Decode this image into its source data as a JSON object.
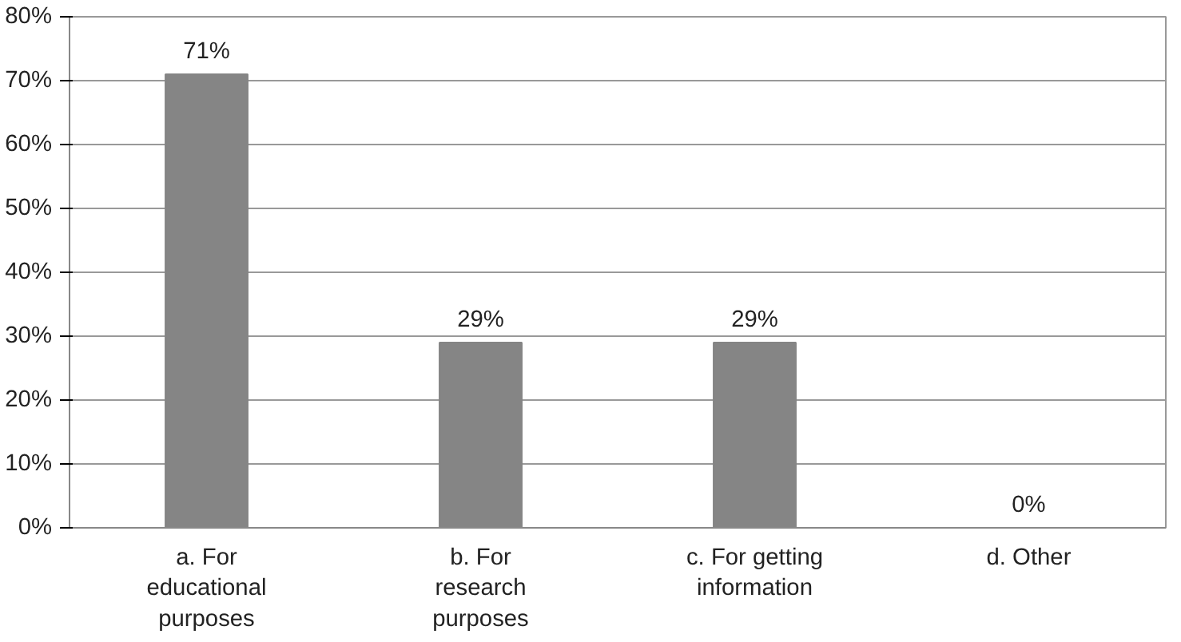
{
  "chart_data": {
    "type": "bar",
    "categories": [
      "a. For educational purposes",
      "b. For research purposes",
      "c. For getting information",
      "d. Other"
    ],
    "values": [
      71,
      29,
      29,
      0
    ],
    "value_labels": [
      "71%",
      "29%",
      "29%",
      "0%"
    ],
    "color": "#858585",
    "ylim": [
      0,
      80
    ],
    "yticks": [
      {
        "value": 0,
        "label": "0%"
      },
      {
        "value": 10,
        "label": "10%"
      },
      {
        "value": 20,
        "label": "20%"
      },
      {
        "value": 30,
        "label": "30%"
      },
      {
        "value": 40,
        "label": "40%"
      },
      {
        "value": 50,
        "label": "50%"
      },
      {
        "value": 60,
        "label": "60%"
      },
      {
        "value": 70,
        "label": "70%"
      },
      {
        "value": 80,
        "label": "80%"
      }
    ],
    "grid": "y"
  }
}
